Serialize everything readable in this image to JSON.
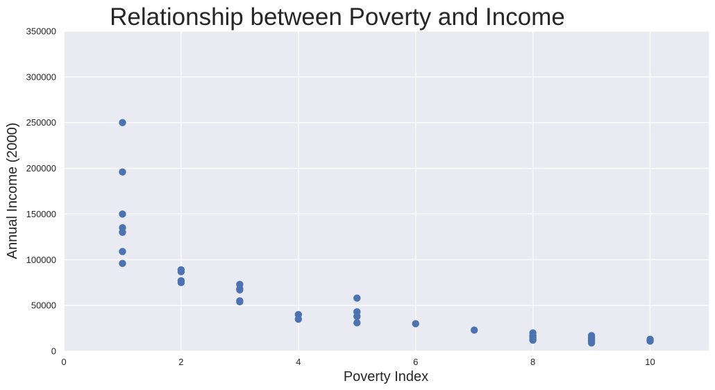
{
  "chart_data": {
    "type": "scatter",
    "title": "Relationship between Poverty and Income",
    "xlabel": "Poverty Index",
    "ylabel": "Annual Income (2000)",
    "xlim": [
      0,
      11
    ],
    "ylim": [
      0,
      350000
    ],
    "xticks": [
      0,
      2,
      4,
      6,
      8,
      10
    ],
    "yticks": [
      0,
      50000,
      100000,
      150000,
      200000,
      250000,
      300000,
      350000
    ],
    "xtick_labels": [
      "0",
      "2",
      "4",
      "6",
      "8",
      "10"
    ],
    "ytick_labels": [
      "0",
      "50000",
      "100000",
      "150000",
      "200000",
      "250000",
      "300000",
      "350000"
    ],
    "grid": true,
    "marker_color": "#4c72b0",
    "background_color": "#eaeaf2",
    "points": [
      {
        "x": 1,
        "y": 250000
      },
      {
        "x": 1,
        "y": 196000
      },
      {
        "x": 1,
        "y": 150000
      },
      {
        "x": 1,
        "y": 135000
      },
      {
        "x": 1,
        "y": 130000
      },
      {
        "x": 1,
        "y": 109000
      },
      {
        "x": 1,
        "y": 96000
      },
      {
        "x": 2,
        "y": 89000
      },
      {
        "x": 2,
        "y": 87000
      },
      {
        "x": 2,
        "y": 77000
      },
      {
        "x": 2,
        "y": 75000
      },
      {
        "x": 3,
        "y": 73000
      },
      {
        "x": 3,
        "y": 68000
      },
      {
        "x": 3,
        "y": 67000
      },
      {
        "x": 3,
        "y": 55000
      },
      {
        "x": 3,
        "y": 54000
      },
      {
        "x": 4,
        "y": 40000
      },
      {
        "x": 4,
        "y": 35000
      },
      {
        "x": 5,
        "y": 58000
      },
      {
        "x": 5,
        "y": 43000
      },
      {
        "x": 5,
        "y": 38000
      },
      {
        "x": 5,
        "y": 31000
      },
      {
        "x": 6,
        "y": 30000
      },
      {
        "x": 7,
        "y": 23000
      },
      {
        "x": 8,
        "y": 20000
      },
      {
        "x": 8,
        "y": 17000
      },
      {
        "x": 8,
        "y": 15000
      },
      {
        "x": 8,
        "y": 13000
      },
      {
        "x": 8,
        "y": 12000
      },
      {
        "x": 9,
        "y": 17000
      },
      {
        "x": 9,
        "y": 15000
      },
      {
        "x": 9,
        "y": 13000
      },
      {
        "x": 9,
        "y": 11000
      },
      {
        "x": 9,
        "y": 9000
      },
      {
        "x": 10,
        "y": 13000
      },
      {
        "x": 10,
        "y": 12000
      },
      {
        "x": 10,
        "y": 11000
      }
    ]
  }
}
